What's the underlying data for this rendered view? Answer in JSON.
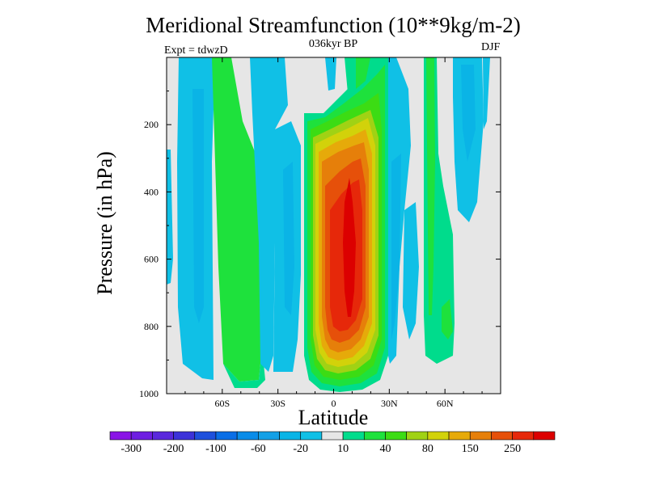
{
  "chart_data": {
    "type": "heatmap",
    "title": "Meridional Streamfunction (10**9kg/m-2)",
    "subtitle": "036kyr BP",
    "left_annotation": "Expt = tdwzD",
    "right_annotation": "DJF",
    "xlabel": "Latitude",
    "ylabel": "Pressure (in hPa)",
    "xlim": [
      -90,
      90
    ],
    "ylim": [
      0,
      1000
    ],
    "y_reversed": true,
    "x_ticks": [
      {
        "value": -60,
        "label": "60S"
      },
      {
        "value": -30,
        "label": "30S"
      },
      {
        "value": 0,
        "label": "0"
      },
      {
        "value": 30,
        "label": "30N"
      },
      {
        "value": 60,
        "label": "60N"
      }
    ],
    "y_ticks": [
      {
        "value": 200,
        "label": "200"
      },
      {
        "value": 400,
        "label": "400"
      },
      {
        "value": 600,
        "label": "600"
      },
      {
        "value": 800,
        "label": "800"
      },
      {
        "value": 1000,
        "label": "1000"
      }
    ],
    "contour_levels": [
      -300,
      -250,
      -200,
      -150,
      -100,
      -80,
      -60,
      -40,
      -20,
      -10,
      10,
      20,
      40,
      60,
      80,
      100,
      150,
      200,
      250,
      300
    ],
    "colorbar_labels": [
      "-300",
      "-200",
      "-100",
      "-60",
      "-20",
      "10",
      "40",
      "80",
      "150",
      "250"
    ],
    "colorbar_colors": [
      "#8a14e6",
      "#6e1ee1",
      "#5a28dc",
      "#3c32d8",
      "#1e50dc",
      "#0a6ee6",
      "#0a8ce8",
      "#14a0e6",
      "#0ab4e6",
      "#10c0e6",
      "#e6e6e6",
      "#00dc8c",
      "#1ee13c",
      "#3cdc14",
      "#a0d214",
      "#d2d20a",
      "#e6aa0a",
      "#e67f0a",
      "#e6500a",
      "#e6280a",
      "#dc0000"
    ],
    "grid": false,
    "background_color": "#e6e6e6",
    "features": [
      {
        "name": "tropical-positive-cell",
        "lat_range": [
          -10,
          22
        ],
        "p_range": [
          60,
          1000
        ],
        "max_value": 250
      },
      {
        "name": "southern-negative-cell-1",
        "lat_range": [
          -82,
          -64
        ],
        "p_range": [
          0,
          960
        ],
        "min_value": -20
      },
      {
        "name": "southern-positive-cell",
        "lat_range": [
          -63,
          -50
        ],
        "p_range": [
          0,
          980
        ],
        "max_value": 20
      },
      {
        "name": "southern-negative-cell-2",
        "lat_range": [
          -47,
          -18
        ],
        "p_range": [
          0,
          950
        ],
        "min_value": -20
      },
      {
        "name": "northern-negative-cell-1",
        "lat_range": [
          22,
          44
        ],
        "p_range": [
          180,
          950
        ],
        "min_value": -20
      },
      {
        "name": "northern-positive-cell",
        "lat_range": [
          47,
          68
        ],
        "p_range": [
          0,
          940
        ],
        "max_value": 20
      },
      {
        "name": "northern-negative-cell-2",
        "lat_range": [
          60,
          82
        ],
        "p_range": [
          0,
          560
        ],
        "min_value": -20
      }
    ]
  }
}
